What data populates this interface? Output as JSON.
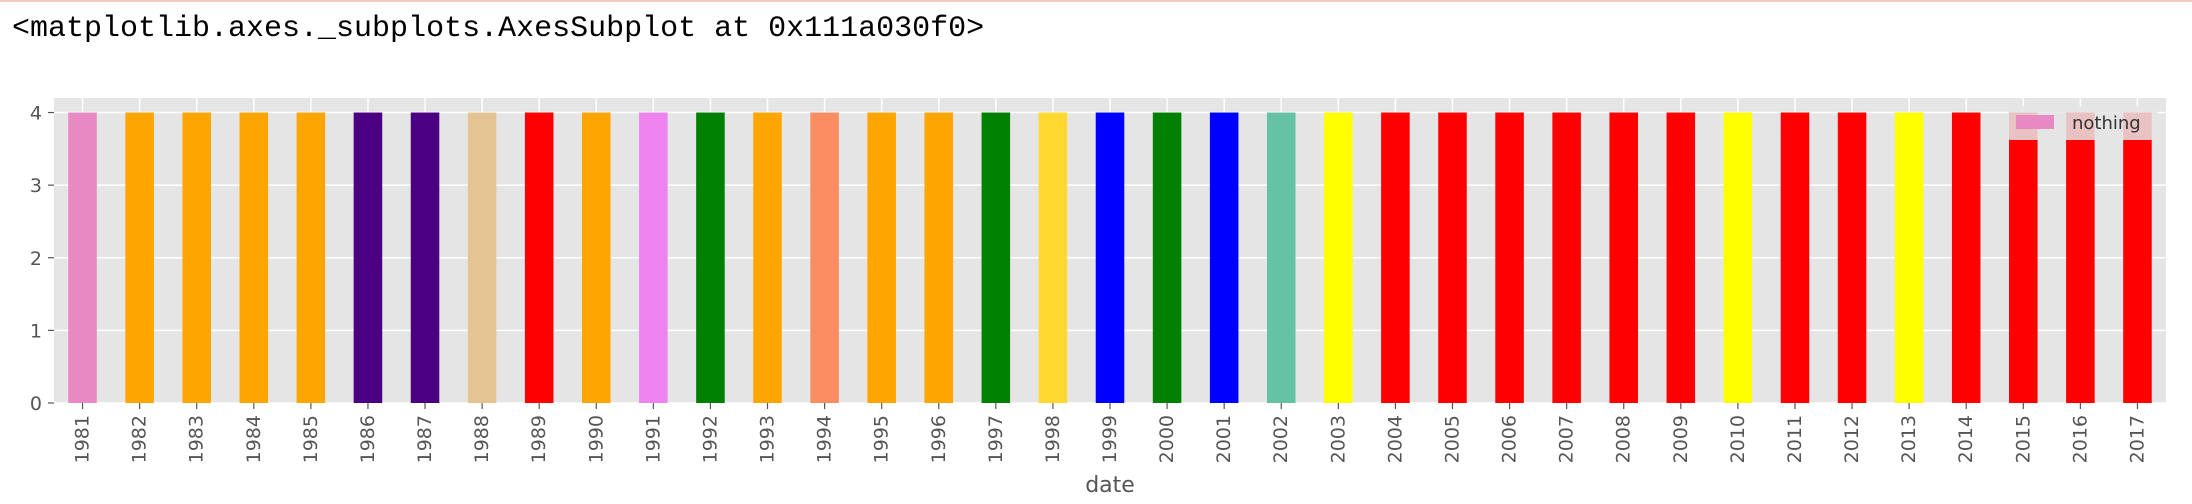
{
  "output": {
    "repr_text": "<matplotlib.axes._subplots.AxesSubplot at 0x111a030f0>"
  },
  "chart_data": {
    "type": "bar",
    "title": "",
    "xlabel": "date",
    "ylabel": "",
    "ylim": [
      0,
      4.2
    ],
    "yticks": [
      0,
      1,
      2,
      3,
      4
    ],
    "grid": true,
    "background": "#e5e5e5",
    "legend": {
      "position": "top-right",
      "entries": [
        {
          "label": "nothing",
          "color": "#e78ac3"
        }
      ]
    },
    "categories": [
      "1981",
      "1982",
      "1983",
      "1984",
      "1985",
      "1986",
      "1987",
      "1988",
      "1989",
      "1990",
      "1991",
      "1992",
      "1993",
      "1994",
      "1995",
      "1996",
      "1997",
      "1998",
      "1999",
      "2000",
      "2001",
      "2002",
      "2003",
      "2004",
      "2005",
      "2006",
      "2007",
      "2008",
      "2009",
      "2010",
      "2011",
      "2012",
      "2013",
      "2014",
      "2015",
      "2016",
      "2017"
    ],
    "series": [
      {
        "name": "nothing",
        "values": [
          4,
          4,
          4,
          4,
          4,
          4,
          4,
          4,
          4,
          4,
          4,
          4,
          4,
          4,
          4,
          4,
          4,
          4,
          4,
          4,
          4,
          4,
          4,
          4,
          4,
          4,
          4,
          4,
          4,
          4,
          4,
          4,
          4,
          4,
          4,
          4,
          4
        ],
        "colors": [
          "#e78ac3",
          "#ffa500",
          "#ffa500",
          "#ffa500",
          "#ffa500",
          "#4b0082",
          "#4b0082",
          "#e5c494",
          "#ff0000",
          "#ffa500",
          "#ee82ee",
          "#008000",
          "#ffa500",
          "#fc8d62",
          "#ffa500",
          "#ffa500",
          "#008000",
          "#ffd92f",
          "#0000ff",
          "#008000",
          "#0000ff",
          "#66c2a5",
          "#ffff00",
          "#ff0000",
          "#ff0000",
          "#ff0000",
          "#ff0000",
          "#ff0000",
          "#ff0000",
          "#ffff00",
          "#ff0000",
          "#ff0000",
          "#ffff00",
          "#ff0000",
          "#ff0000",
          "#ff0000",
          "#ff0000"
        ]
      }
    ]
  }
}
